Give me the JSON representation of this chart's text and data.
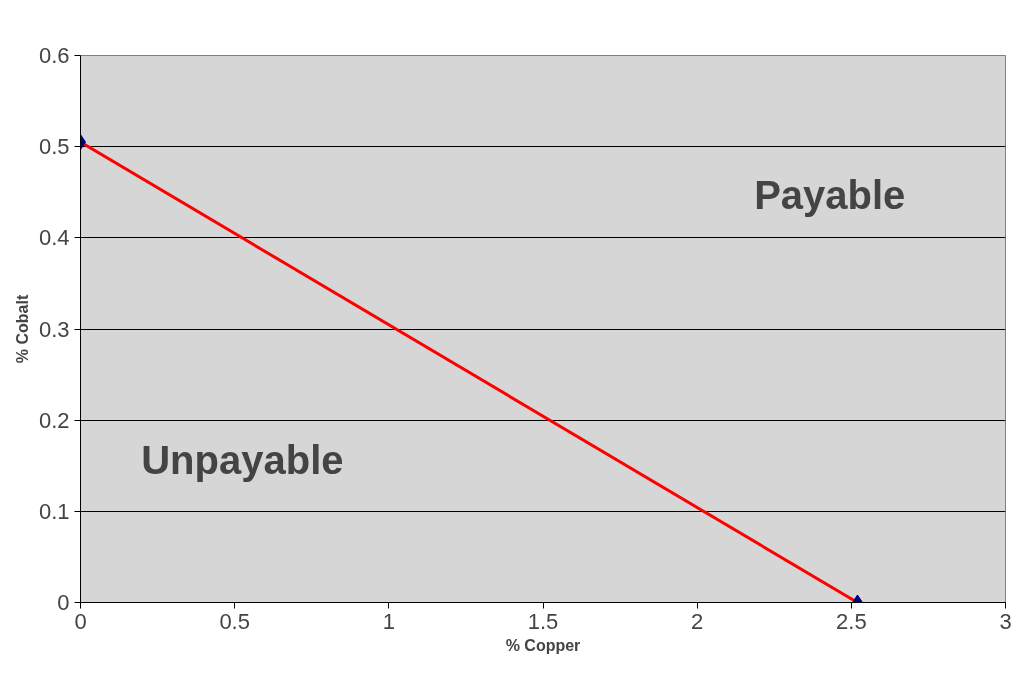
{
  "chart_data": {
    "type": "line",
    "xlabel": "% Copper",
    "ylabel": "% Cobalt",
    "x": [
      0,
      2.52
    ],
    "series": [
      {
        "color": "#ff0000",
        "values": [
          0.505,
          0
        ],
        "marker": "none"
      },
      {
        "type": "scatter",
        "color": "#000080",
        "values": [
          0.505,
          0
        ],
        "marker": "diamond"
      }
    ],
    "xlim": [
      0,
      3
    ],
    "xticks": [
      0,
      {
        "value": 0.5,
        "label": "0.5"
      },
      1,
      {
        "value": 1.5,
        "label": "1.5"
      },
      2,
      {
        "value": 2.5,
        "label": "2.5"
      },
      3
    ],
    "ylim": [
      0,
      0.6
    ],
    "yticks": [
      0,
      0.1,
      0.2,
      0.3,
      0.4,
      0.5,
      0.6
    ],
    "grid": "y",
    "annotations": [
      "Payable",
      "Unpayable"
    ]
  }
}
